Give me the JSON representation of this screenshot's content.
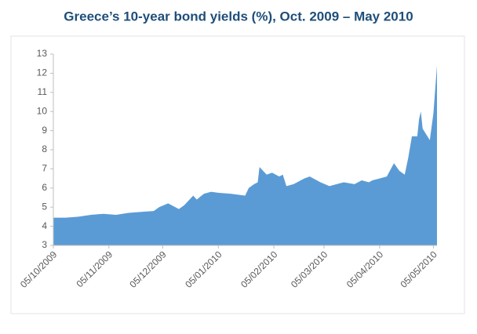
{
  "chart_data": {
    "type": "area",
    "title": "Greece’s 10-year bond yields (%), Oct. 2009 – May 2010",
    "x": [
      "2009-10-05",
      "2009-10-12",
      "2009-10-19",
      "2009-10-26",
      "2009-11-02",
      "2009-11-09",
      "2009-11-16",
      "2009-11-23",
      "2009-11-30",
      "2009-12-03",
      "2009-12-08",
      "2009-12-14",
      "2009-12-17",
      "2009-12-22",
      "2009-12-24",
      "2009-12-28",
      "2010-01-01",
      "2010-01-05",
      "2010-01-12",
      "2010-01-20",
      "2010-01-22",
      "2010-01-25",
      "2010-01-27",
      "2010-01-28",
      "2010-02-01",
      "2010-02-04",
      "2010-02-08",
      "2010-02-10",
      "2010-02-12",
      "2010-02-16",
      "2010-02-22",
      "2010-02-25",
      "2010-03-01",
      "2010-03-03",
      "2010-03-08",
      "2010-03-12",
      "2010-03-16",
      "2010-03-22",
      "2010-03-26",
      "2010-03-30",
      "2010-04-01",
      "2010-04-05",
      "2010-04-09",
      "2010-04-13",
      "2010-04-16",
      "2010-04-19",
      "2010-04-21",
      "2010-04-23",
      "2010-04-26",
      "2010-04-27",
      "2010-04-28",
      "2010-04-29",
      "2010-05-03",
      "2010-05-05",
      "2010-05-07"
    ],
    "series": [
      {
        "name": "10-year bond yield",
        "color": "#5b9bd5",
        "values": [
          4.45,
          4.45,
          4.5,
          4.6,
          4.65,
          4.6,
          4.7,
          4.75,
          4.8,
          5.0,
          5.2,
          4.9,
          5.1,
          5.6,
          5.4,
          5.7,
          5.8,
          5.75,
          5.7,
          5.6,
          6.0,
          6.2,
          6.3,
          7.1,
          6.7,
          6.8,
          6.6,
          6.7,
          6.1,
          6.2,
          6.5,
          6.6,
          6.4,
          6.3,
          6.1,
          6.2,
          6.3,
          6.2,
          6.4,
          6.3,
          6.4,
          6.5,
          6.6,
          7.3,
          6.9,
          6.7,
          7.6,
          8.7,
          8.7,
          9.6,
          10.0,
          9.1,
          8.5,
          9.9,
          12.4
        ]
      }
    ],
    "xlim": [
      "2009-10-05",
      "2010-05-07"
    ],
    "xticks": [
      {
        "value": "2009-10-05",
        "label": "05/10/2009"
      },
      {
        "value": "2009-11-05",
        "label": "05/11/2009"
      },
      {
        "value": "2009-12-05",
        "label": "05/12/2009"
      },
      {
        "value": "2010-01-05",
        "label": "05/01/2010"
      },
      {
        "value": "2010-02-05",
        "label": "05/02/2010"
      },
      {
        "value": "2010-03-05",
        "label": "05/03/2010"
      },
      {
        "value": "2010-04-05",
        "label": "05/04/2010"
      },
      {
        "value": "2010-05-05",
        "label": "05/05/2010"
      }
    ],
    "ylim": [
      3,
      13
    ],
    "yticks": [
      3,
      4,
      5,
      6,
      7,
      8,
      9,
      10,
      11,
      12,
      13
    ],
    "grid": false
  }
}
